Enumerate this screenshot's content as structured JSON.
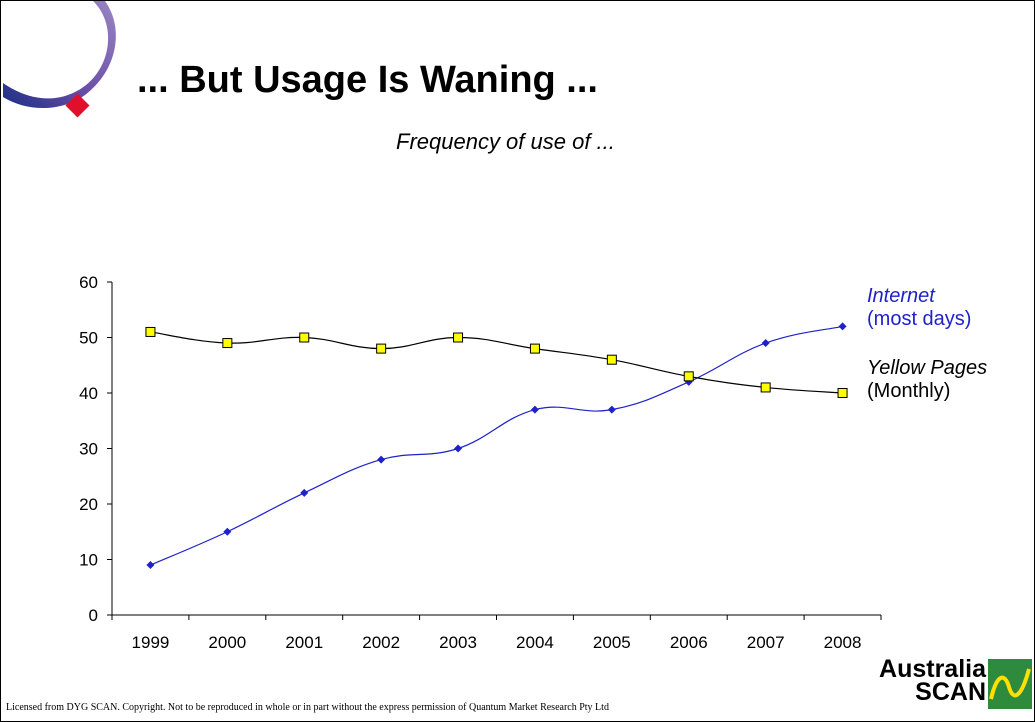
{
  "slide": {
    "title": "... But Usage Is Waning ...",
    "subtitle": "Frequency of use of ..."
  },
  "legend": {
    "internet": {
      "name": "Internet",
      "detail": "(most days)",
      "color": "#1f22c8"
    },
    "yellow_pages": {
      "name": "Yellow Pages",
      "detail": "(Monthly)",
      "color": "#000000"
    }
  },
  "footer": {
    "copyright": "Licensed from DYG SCAN. Copyright. Not to be reproduced in whole or in part without the express permission of Quantum Market Research Pty Ltd"
  },
  "brand": {
    "line1": "Australia",
    "line2": "SCAN"
  },
  "chart_data": {
    "type": "line",
    "categories": [
      "1999",
      "2000",
      "2001",
      "2002",
      "2003",
      "2004",
      "2005",
      "2006",
      "2007",
      "2008"
    ],
    "ylim": [
      0,
      60
    ],
    "yticks": [
      0,
      10,
      20,
      30,
      40,
      50,
      60
    ],
    "series": [
      {
        "name": "Internet",
        "key": "internet",
        "color": "#1f22c8",
        "marker": "diamond",
        "values": [
          9,
          15,
          22,
          28,
          30,
          37,
          37,
          42,
          49,
          52
        ]
      },
      {
        "name": "Yellow Pages",
        "key": "yellow_pages",
        "color": "#000000",
        "marker": "square",
        "marker_fill": "#ffff00",
        "values": [
          51,
          49,
          50,
          48,
          50,
          48,
          46,
          43,
          41,
          40
        ]
      }
    ]
  }
}
